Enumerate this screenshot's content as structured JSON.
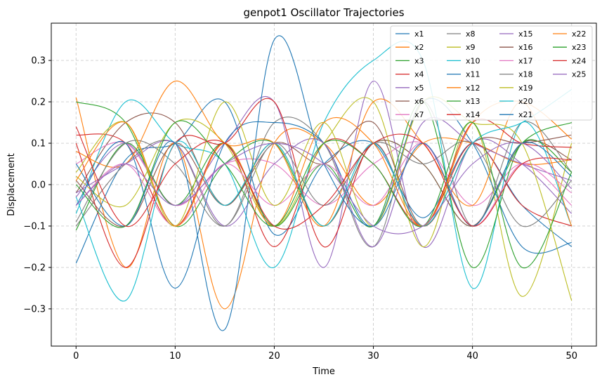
{
  "chart_data": {
    "type": "line",
    "title": "genpot1 Oscillator Trajectories",
    "xlabel": "Time",
    "ylabel": "Displacement",
    "xlim": [
      -2.5,
      52.5
    ],
    "ylim": [
      -0.39,
      0.39
    ],
    "xticks": [
      0,
      10,
      20,
      30,
      40,
      50
    ],
    "yticks": [
      -0.3,
      -0.2,
      -0.1,
      0.0,
      0.1,
      0.2,
      0.3
    ],
    "ytick_labels": [
      "−0.3",
      "−0.2",
      "−0.1",
      "0.0",
      "0.1",
      "0.2",
      "0.3"
    ],
    "grid": true,
    "legend": {
      "position": "top-right",
      "columns": 4
    },
    "series": [
      {
        "name": "x1",
        "color": "#1f77b4",
        "x": [
          0,
          5,
          10,
          15,
          20,
          25,
          30,
          35,
          40,
          45,
          50
        ],
        "y": [
          -0.19,
          0.06,
          0.1,
          0.2,
          -0.12,
          0.05,
          0.1,
          -0.08,
          0.1,
          -0.05,
          -0.15
        ]
      },
      {
        "name": "x2",
        "color": "#ff7f0e",
        "x": [
          0,
          5,
          10,
          15,
          20,
          25,
          30,
          35,
          40,
          45,
          50
        ],
        "y": [
          0.21,
          -0.2,
          0.1,
          -0.3,
          0.1,
          0.1,
          -0.05,
          0.1,
          0.1,
          0.05,
          0.06
        ]
      },
      {
        "name": "x3",
        "color": "#2ca02c",
        "x": [
          0,
          5,
          10,
          15,
          20,
          25,
          30,
          35,
          40,
          45,
          50
        ],
        "y": [
          0.2,
          0.15,
          -0.1,
          0.05,
          0.1,
          -0.1,
          0.1,
          0.05,
          -0.1,
          0.1,
          0.15
        ]
      },
      {
        "name": "x4",
        "color": "#d62728",
        "x": [
          0,
          5,
          10,
          15,
          20,
          25,
          30,
          35,
          40,
          45,
          50
        ],
        "y": [
          0.12,
          0.1,
          -0.1,
          0.1,
          -0.15,
          0.1,
          0.05,
          -0.1,
          0.1,
          -0.05,
          -0.1
        ]
      },
      {
        "name": "x5",
        "color": "#9467bd",
        "x": [
          0,
          5,
          10,
          15,
          20,
          25,
          30,
          35,
          40,
          45,
          50
        ],
        "y": [
          -0.03,
          0.1,
          -0.05,
          0.1,
          0.2,
          -0.2,
          0.25,
          -0.15,
          0.1,
          0.05,
          -0.07
        ]
      },
      {
        "name": "x6",
        "color": "#8c564b",
        "x": [
          0,
          5,
          10,
          15,
          20,
          25,
          30,
          35,
          40,
          45,
          50
        ],
        "y": [
          -0.02,
          0.15,
          0.15,
          -0.05,
          0.1,
          -0.1,
          0.1,
          0.05,
          -0.1,
          0.1,
          0.06
        ]
      },
      {
        "name": "x7",
        "color": "#e377c2",
        "x": [
          0,
          5,
          10,
          15,
          20,
          25,
          30,
          35,
          40,
          45,
          50
        ],
        "y": [
          0.05,
          0.1,
          -0.05,
          0.05,
          0.05,
          -0.05,
          0.05,
          0.1,
          -0.05,
          0.05,
          -0.05
        ]
      },
      {
        "name": "x8",
        "color": "#7f7f7f",
        "x": [
          0,
          5,
          10,
          15,
          20,
          25,
          30,
          35,
          40,
          45,
          50
        ],
        "y": [
          -0.1,
          0.05,
          0.1,
          -0.1,
          0.15,
          0.1,
          -0.15,
          0.2,
          -0.1,
          0.15,
          0.03
        ]
      },
      {
        "name": "x9",
        "color": "#bcbd22",
        "x": [
          0,
          5,
          10,
          15,
          20,
          25,
          30,
          35,
          40,
          45,
          50
        ],
        "y": [
          0.02,
          -0.05,
          0.15,
          0.1,
          -0.1,
          0.1,
          0.2,
          -0.15,
          0.15,
          -0.27,
          0.1
        ]
      },
      {
        "name": "x10",
        "color": "#17becf",
        "x": [
          0,
          5,
          10,
          15,
          20,
          25,
          30,
          35,
          40,
          45,
          50
        ],
        "y": [
          -0.07,
          0.2,
          0.1,
          0.05,
          -0.2,
          0.15,
          0.3,
          0.3,
          -0.25,
          0.15,
          -0.1
        ]
      },
      {
        "name": "x11",
        "color": "#1f77b4",
        "x": [
          0,
          5,
          10,
          15,
          20,
          25,
          30,
          35,
          40,
          45,
          50
        ],
        "y": [
          -0.05,
          0.1,
          -0.25,
          0.1,
          0.15,
          0.1,
          -0.1,
          0.2,
          0.1,
          -0.15,
          -0.14
        ]
      },
      {
        "name": "x12",
        "color": "#ff7f0e",
        "x": [
          0,
          5,
          10,
          15,
          20,
          25,
          30,
          35,
          40,
          45,
          50
        ],
        "y": [
          0.08,
          0.05,
          0.25,
          0.1,
          0.1,
          -0.1,
          0.2,
          0.1,
          -0.05,
          0.2,
          -0.1
        ]
      },
      {
        "name": "x13",
        "color": "#2ca02c",
        "x": [
          0,
          5,
          10,
          15,
          20,
          25,
          30,
          35,
          40,
          45,
          50
        ],
        "y": [
          -0.11,
          0.1,
          -0.05,
          0.1,
          -0.1,
          0.05,
          -0.1,
          0.2,
          -0.2,
          0.1,
          0.03
        ]
      },
      {
        "name": "x14",
        "color": "#d62728",
        "x": [
          0,
          5,
          10,
          15,
          20,
          25,
          30,
          35,
          40,
          45,
          50
        ],
        "y": [
          0.1,
          -0.2,
          0.1,
          0.1,
          0.2,
          -0.15,
          0.1,
          -0.1,
          0.15,
          0.1,
          0.09
        ]
      },
      {
        "name": "x15",
        "color": "#9467bd",
        "x": [
          0,
          5,
          10,
          15,
          20,
          25,
          30,
          35,
          40,
          45,
          50
        ],
        "y": [
          -0.02,
          0.05,
          0.1,
          -0.1,
          0.05,
          0.1,
          -0.15,
          0.15,
          0.1,
          0.05,
          0.01
        ]
      },
      {
        "name": "x16",
        "color": "#8c564b",
        "x": [
          0,
          5,
          10,
          15,
          20,
          25,
          30,
          35,
          40,
          45,
          50
        ],
        "y": [
          0.01,
          -0.1,
          0.1,
          -0.05,
          0.1,
          0.05,
          0.15,
          -0.1,
          0.1,
          0.1,
          0.12
        ]
      },
      {
        "name": "x17",
        "color": "#e377c2",
        "x": [
          0,
          5,
          10,
          15,
          20,
          25,
          30,
          35,
          40,
          45,
          50
        ],
        "y": [
          -0.05,
          0.05,
          -0.1,
          0.05,
          -0.05,
          0.05,
          -0.05,
          0.1,
          -0.1,
          0.05,
          -0.02
        ]
      },
      {
        "name": "x18",
        "color": "#7f7f7f",
        "x": [
          0,
          5,
          10,
          15,
          20,
          25,
          30,
          35,
          40,
          45,
          50
        ],
        "y": [
          -0.09,
          0.1,
          0.05,
          -0.1,
          0.1,
          -0.05,
          0.1,
          0.05,
          0.1,
          -0.1,
          0.01
        ]
      },
      {
        "name": "x19",
        "color": "#bcbd22",
        "x": [
          0,
          5,
          10,
          15,
          20,
          25,
          30,
          35,
          40,
          45,
          50
        ],
        "y": [
          0.03,
          0.15,
          -0.1,
          0.2,
          -0.05,
          0.15,
          -0.1,
          0.2,
          0.15,
          0.1,
          -0.28
        ]
      },
      {
        "name": "x20",
        "color": "#17becf",
        "x": [
          0,
          5,
          10,
          15,
          20,
          25,
          30,
          35,
          40,
          45,
          50
        ],
        "y": [
          -0.03,
          -0.28,
          0.1,
          -0.05,
          0.1,
          -0.1,
          0.1,
          -0.1,
          0.1,
          0.15,
          0.23
        ]
      },
      {
        "name": "x21",
        "color": "#1f77b4",
        "x": [
          0,
          5,
          10,
          15,
          20,
          25,
          30,
          35,
          40,
          45,
          50
        ],
        "y": [
          0.05,
          -0.1,
          0.1,
          -0.35,
          0.35,
          0.05,
          -0.1,
          0.1,
          -0.1,
          0.1,
          0.02
        ]
      },
      {
        "name": "x22",
        "color": "#ff7f0e",
        "x": [
          0,
          5,
          10,
          15,
          20,
          25,
          30,
          35,
          40,
          45,
          50
        ],
        "y": [
          0.01,
          0.15,
          -0.1,
          0.1,
          -0.1,
          0.15,
          0.1,
          -0.1,
          0.15,
          0.2,
          0.11
        ]
      },
      {
        "name": "x23",
        "color": "#2ca02c",
        "x": [
          0,
          5,
          10,
          15,
          20,
          25,
          30,
          35,
          40,
          45,
          50
        ],
        "y": [
          0.0,
          -0.1,
          0.15,
          0.05,
          -0.1,
          0.1,
          0.05,
          -0.1,
          0.15,
          -0.2,
          0.03
        ]
      },
      {
        "name": "x24",
        "color": "#d62728",
        "x": [
          0,
          5,
          10,
          15,
          20,
          25,
          30,
          35,
          40,
          45,
          50
        ],
        "y": [
          0.14,
          -0.1,
          0.05,
          0.1,
          -0.1,
          -0.05,
          0.1,
          0.1,
          -0.1,
          0.05,
          0.06
        ]
      },
      {
        "name": "x25",
        "color": "#9467bd",
        "x": [
          0,
          5,
          10,
          15,
          20,
          25,
          30,
          35,
          40,
          45,
          50
        ],
        "y": [
          -0.05,
          0.05,
          -0.05,
          0.05,
          0.1,
          0.05,
          -0.1,
          -0.1,
          0.05,
          0.1,
          -0.01
        ]
      }
    ]
  }
}
